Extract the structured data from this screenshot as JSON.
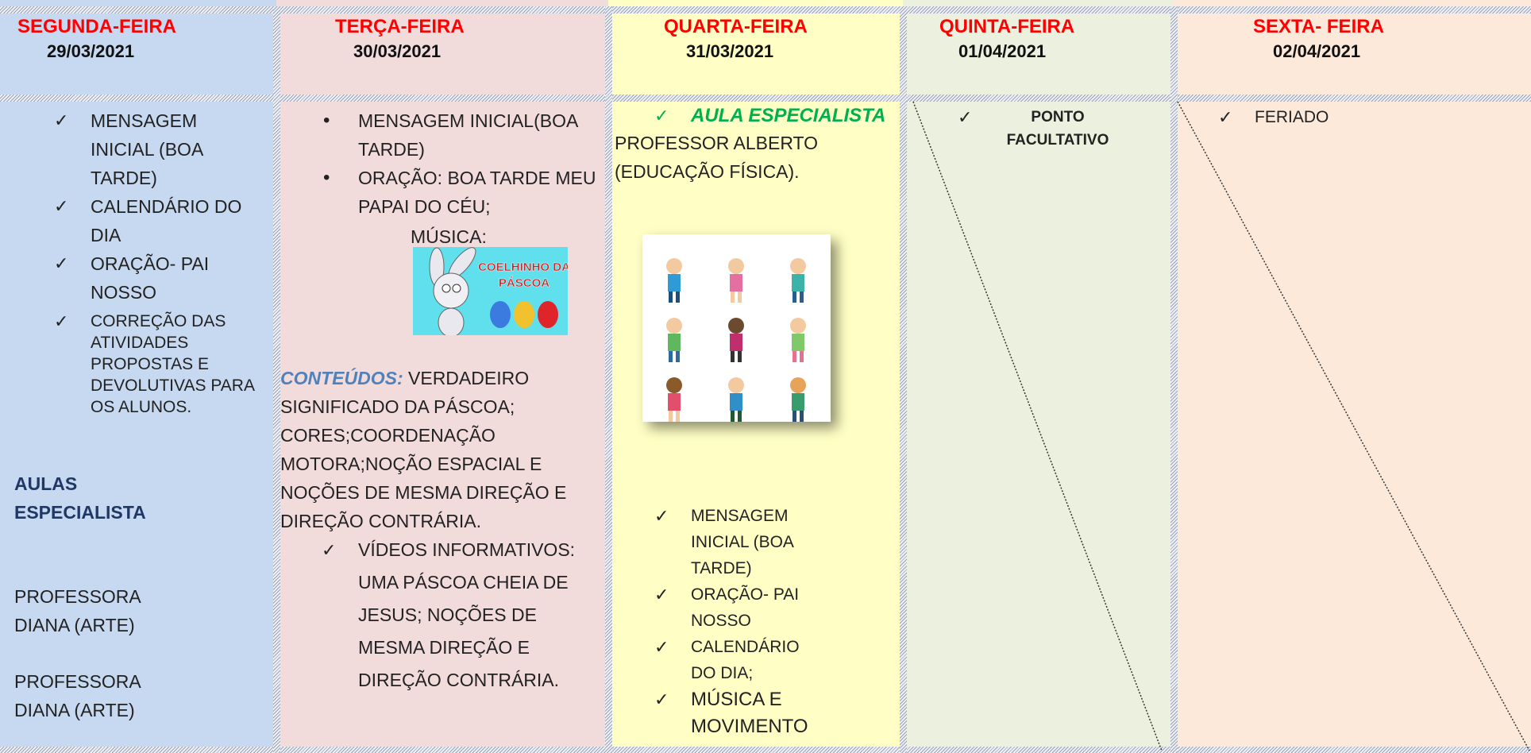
{
  "columns": [
    {
      "day": "SEGUNDA-FEIRA",
      "date": "29/03/2021",
      "checklist": [
        "MENSAGEM INICIAL (BOA TARDE)",
        "CALENDÁRIO DO DIA",
        "ORAÇÃO- PAI NOSSO",
        "CORREÇÃO DAS ATIVIDADES PROPOSTAS  E DEVOLUTIVAS PARA OS ALUNOS."
      ],
      "specialist_heading": "AULAS ESPECIALISTA",
      "teachers": [
        "PROFESSORA DIANA (ARTE)",
        "PROFESSORA DIANA (ARTE)"
      ]
    },
    {
      "day": "TERÇA-FEIRA",
      "date": "30/03/2021",
      "bullets": [
        "MENSAGEM INICIAL(BOA TARDE)",
        "ORAÇÃO: BOA TARDE MEU PAPAI DO CÉU;"
      ],
      "music_label": "MÚSICA:",
      "image_text": [
        "COELHINHO DA",
        "PÁSCOA"
      ],
      "contents_label": "CONTEÚDOS:",
      "contents_text": "VERDADEIRO SIGNIFICADO DA PÁSCOA; CORES;COORDENAÇÃO MOTORA;NOÇÃO ESPACIAL E NOÇÕES DE MESMA DIREÇÃO E DIREÇÃO CONTRÁRIA.",
      "checklist": [
        "VÍDEOS INFORMATIVOS: UMA PÁSCOA CHEIA DE JESUS; NOÇÕES DE MESMA DIREÇÃO E DIREÇÃO CONTRÁRIA."
      ]
    },
    {
      "day": "QUARTA-FEIRA",
      "date": "31/03/2021",
      "specialist_heading": "AULA ESPECIALISTA",
      "teacher": "PROFESSOR ALBERTO (EDUCAÇÃO FÍSICA).",
      "checklist": [
        "MENSAGEM INICIAL (BOA TARDE)",
        "ORAÇÃO- PAI NOSSO",
        "CALENDÁRIO DO DIA;",
        "MÚSICA E MOVIMENTO"
      ]
    },
    {
      "day": "QUINTA-FEIRA",
      "date": "01/04/2021",
      "checklist": [
        "PONTO FACULTATIVO"
      ]
    },
    {
      "day": "SEXTA- FEIRA",
      "date": "02/04/2021",
      "checklist": [
        "FERIADO"
      ]
    }
  ]
}
